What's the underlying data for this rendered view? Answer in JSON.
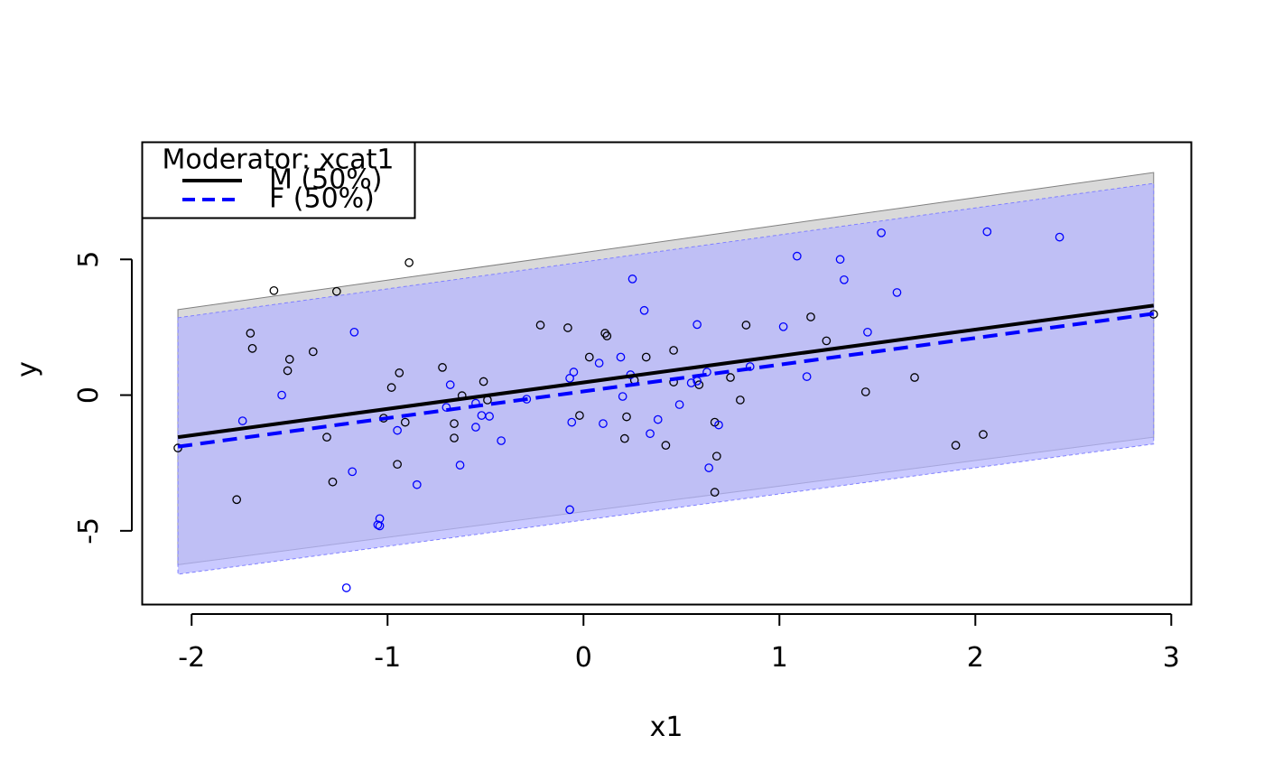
{
  "chart_data": {
    "type": "scatter",
    "xlabel": "x1",
    "ylabel": "y",
    "xlim": [
      -2.25,
      3.1
    ],
    "ylim": [
      -7.7,
      9.3
    ],
    "xticks": [
      -2,
      -1,
      0,
      1,
      2,
      3
    ],
    "xtick_labels": [
      "-2",
      "-1",
      "0",
      "1",
      "2",
      "3"
    ],
    "yticks": [
      -5,
      0,
      5
    ],
    "ytick_labels": [
      "-5",
      "0",
      "5"
    ],
    "grid": false,
    "legend": {
      "title": "Moderator: xcat1",
      "placement": "top-left",
      "entries": [
        {
          "label": "M (50%)",
          "color": "#000000",
          "linestyle": "solid"
        },
        {
          "label": "F (50%)",
          "color": "#0000ff",
          "linestyle": "dashed"
        }
      ]
    },
    "series": [
      {
        "name": "M (50%)",
        "color": "#000000",
        "fill": "#d9d9d9",
        "line": {
          "x": [
            -2.07,
            2.91
          ],
          "y": [
            -1.55,
            3.3
          ]
        },
        "band_upper": {
          "x": [
            -2.07,
            2.91
          ],
          "y": [
            3.15,
            8.2
          ]
        },
        "band_lower": {
          "x": [
            -2.07,
            2.91
          ],
          "y": [
            -6.25,
            -1.55
          ]
        },
        "points": [
          [
            -2.07,
            -1.95
          ],
          [
            -1.77,
            -3.85
          ],
          [
            -1.7,
            2.28
          ],
          [
            -1.69,
            1.72
          ],
          [
            -1.58,
            3.85
          ],
          [
            -1.51,
            0.9
          ],
          [
            -1.5,
            1.32
          ],
          [
            -1.38,
            1.6
          ],
          [
            -1.31,
            -1.55
          ],
          [
            -1.28,
            -3.2
          ],
          [
            -1.26,
            3.82
          ],
          [
            -1.02,
            -0.85
          ],
          [
            -0.98,
            0.28
          ],
          [
            -0.95,
            -2.55
          ],
          [
            -0.94,
            0.82
          ],
          [
            -0.91,
            -1.0
          ],
          [
            -0.89,
            4.88
          ],
          [
            -0.72,
            1.02
          ],
          [
            -0.66,
            -1.05
          ],
          [
            -0.66,
            -1.58
          ],
          [
            -0.62,
            -0.02
          ],
          [
            -0.51,
            0.5
          ],
          [
            -0.49,
            -0.18
          ],
          [
            -0.22,
            2.58
          ],
          [
            -0.08,
            2.48
          ],
          [
            -0.02,
            -0.75
          ],
          [
            0.03,
            1.4
          ],
          [
            0.11,
            2.28
          ],
          [
            0.12,
            2.18
          ],
          [
            0.21,
            -1.6
          ],
          [
            0.22,
            -0.8
          ],
          [
            0.26,
            0.55
          ],
          [
            0.32,
            1.4
          ],
          [
            0.42,
            -1.85
          ],
          [
            0.46,
            1.65
          ],
          [
            0.46,
            0.48
          ],
          [
            0.59,
            0.38
          ],
          [
            0.67,
            -1.0
          ],
          [
            0.67,
            -3.58
          ],
          [
            0.68,
            -2.25
          ],
          [
            0.75,
            0.65
          ],
          [
            0.8,
            -0.18
          ],
          [
            0.83,
            2.58
          ],
          [
            1.16,
            2.88
          ],
          [
            1.24,
            2.0
          ],
          [
            1.44,
            0.12
          ],
          [
            1.69,
            0.65
          ],
          [
            1.9,
            -1.85
          ],
          [
            2.04,
            -1.45
          ],
          [
            2.91,
            2.98
          ]
        ]
      },
      {
        "name": "F (50%)",
        "color": "#0000ff",
        "fill": "#b4b4ff",
        "line": {
          "x": [
            -2.07,
            2.91
          ],
          "y": [
            -1.9,
            3.0
          ]
        },
        "band_upper": {
          "x": [
            -2.07,
            2.91
          ],
          "y": [
            2.85,
            7.8
          ]
        },
        "band_lower": {
          "x": [
            -2.07,
            2.91
          ],
          "y": [
            -6.6,
            -1.8
          ]
        },
        "points": [
          [
            -1.74,
            -0.95
          ],
          [
            -1.54,
            0.0
          ],
          [
            -1.17,
            2.32
          ],
          [
            -1.18,
            -2.82
          ],
          [
            -1.05,
            -4.78
          ],
          [
            -1.04,
            -4.55
          ],
          [
            -1.04,
            -4.82
          ],
          [
            -0.95,
            -1.3
          ],
          [
            -0.85,
            -3.3
          ],
          [
            -0.7,
            -0.45
          ],
          [
            -0.68,
            0.38
          ],
          [
            -0.63,
            -2.58
          ],
          [
            -0.55,
            -0.3
          ],
          [
            -0.55,
            -1.18
          ],
          [
            -0.52,
            -0.75
          ],
          [
            -0.48,
            -0.78
          ],
          [
            -0.42,
            -1.68
          ],
          [
            -0.29,
            -0.15
          ],
          [
            -0.07,
            0.62
          ],
          [
            -0.07,
            -4.22
          ],
          [
            -0.06,
            -1.0
          ],
          [
            -0.05,
            0.85
          ],
          [
            0.08,
            1.18
          ],
          [
            0.1,
            -1.05
          ],
          [
            0.19,
            1.4
          ],
          [
            0.2,
            -0.05
          ],
          [
            0.24,
            0.75
          ],
          [
            0.25,
            4.28
          ],
          [
            0.31,
            3.12
          ],
          [
            0.34,
            -1.42
          ],
          [
            0.38,
            -0.9
          ],
          [
            0.49,
            -0.35
          ],
          [
            0.55,
            0.45
          ],
          [
            0.58,
            2.6
          ],
          [
            0.58,
            0.52
          ],
          [
            0.63,
            0.85
          ],
          [
            0.64,
            -2.68
          ],
          [
            0.69,
            -1.1
          ],
          [
            0.85,
            1.05
          ],
          [
            1.02,
            2.52
          ],
          [
            1.09,
            5.12
          ],
          [
            1.14,
            0.68
          ],
          [
            1.31,
            5.0
          ],
          [
            1.33,
            4.25
          ],
          [
            1.45,
            2.32
          ],
          [
            1.52,
            5.98
          ],
          [
            1.6,
            3.78
          ],
          [
            2.06,
            6.02
          ],
          [
            2.43,
            5.82
          ],
          [
            -1.21,
            -7.1
          ]
        ]
      }
    ]
  }
}
